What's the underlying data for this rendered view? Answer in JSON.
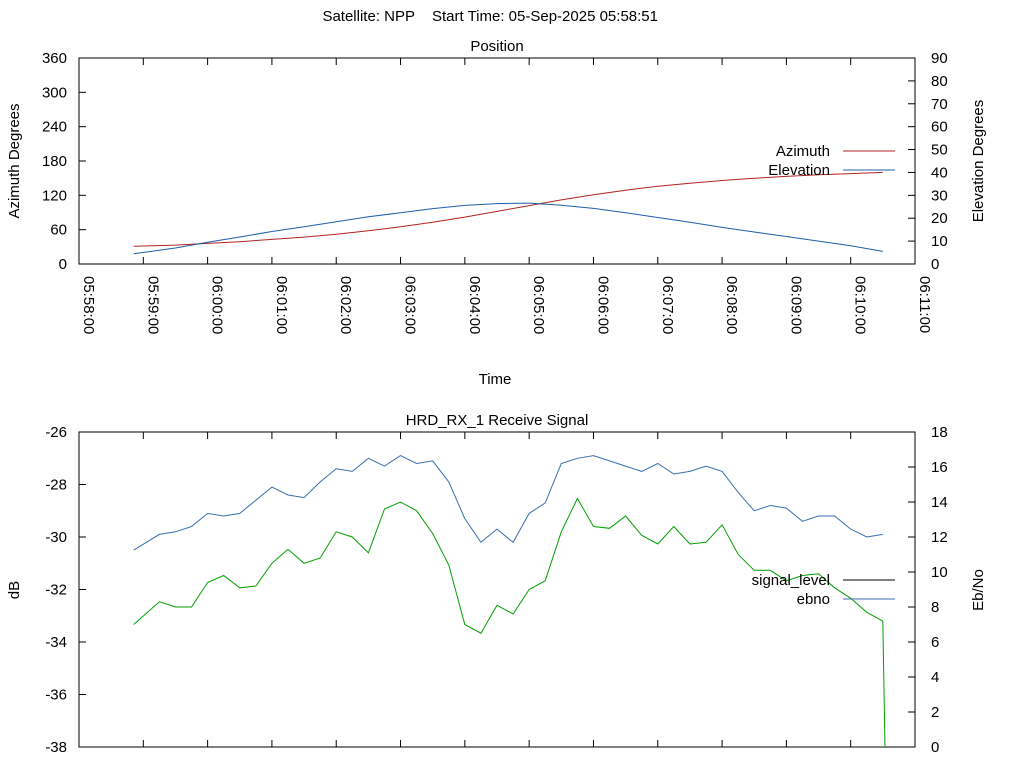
{
  "header": {
    "satellite_label": "Satellite: NPP",
    "start_time_label": "Start Time: 05-Sep-2025 05:58:51"
  },
  "colors": {
    "azimuth": "#b22222",
    "elevation": "#1f5fa8",
    "signal_level": "#3a6fb0",
    "ebno": "#00a000",
    "axes": "#000000"
  },
  "chart_data": [
    {
      "type": "line",
      "title": "Position",
      "xlabel": "Time",
      "ylabel": "Azimuth Degrees",
      "y2label": "Elevation Degrees",
      "xticks": [
        "05:58:00",
        "05:59:00",
        "06:00:00",
        "06:01:00",
        "06:02:00",
        "06:03:00",
        "06:04:00",
        "06:05:00",
        "06:06:00",
        "06:07:00",
        "06:08:00",
        "06:09:00",
        "06:10:00",
        "06:11:00"
      ],
      "xlim": [
        "05:58:00",
        "06:11:00"
      ],
      "ylim": [
        0,
        360
      ],
      "y2lim": [
        0,
        90
      ],
      "yticks": [
        0,
        60,
        120,
        180,
        240,
        300,
        360
      ],
      "y2ticks": [
        0,
        10,
        20,
        30,
        40,
        50,
        60,
        70,
        80,
        90
      ],
      "legend_position": "right",
      "series": [
        {
          "name": "Azimuth",
          "axis": "y",
          "x": [
            "05:58:51",
            "05:59:30",
            "06:00:00",
            "06:00:30",
            "06:01:00",
            "06:01:30",
            "06:02:00",
            "06:02:30",
            "06:03:00",
            "06:03:30",
            "06:04:00",
            "06:04:30",
            "06:05:00",
            "06:05:30",
            "06:06:00",
            "06:06:30",
            "06:07:00",
            "06:07:30",
            "06:08:00",
            "06:08:30",
            "06:09:00",
            "06:09:30",
            "06:10:00",
            "06:10:30"
          ],
          "values": [
            31,
            33,
            36,
            39,
            43,
            47,
            52,
            58,
            65,
            73,
            82,
            92,
            102,
            112,
            121,
            129,
            136,
            141,
            146,
            150,
            153,
            156,
            158,
            160
          ]
        },
        {
          "name": "Elevation",
          "axis": "y2",
          "x": [
            "05:58:51",
            "05:59:30",
            "06:00:00",
            "06:00:30",
            "06:01:00",
            "06:01:30",
            "06:02:00",
            "06:02:30",
            "06:03:00",
            "06:03:30",
            "06:04:00",
            "06:04:30",
            "06:05:00",
            "06:05:30",
            "06:06:00",
            "06:06:30",
            "06:07:00",
            "06:07:30",
            "06:08:00",
            "06:08:30",
            "06:09:00",
            "06:09:30",
            "06:10:00",
            "06:10:30"
          ],
          "values": [
            4.5,
            7,
            9.5,
            11.8,
            14.2,
            16.3,
            18.5,
            20.6,
            22.4,
            24.2,
            25.6,
            26.4,
            26.6,
            25.7,
            24.3,
            22.4,
            20.3,
            18.2,
            16,
            14,
            12,
            10,
            8,
            5.5
          ]
        }
      ]
    },
    {
      "type": "line",
      "title": "HRD_RX_1 Receive Signal",
      "xlabel": "",
      "ylabel": "dB",
      "y2label": "Eb/No",
      "xlim": [
        "05:58:00",
        "06:11:00"
      ],
      "ylim": [
        -38,
        -26
      ],
      "y2lim": [
        0,
        18
      ],
      "yticks": [
        -38,
        -36,
        -34,
        -32,
        -30,
        -28,
        -26
      ],
      "y2ticks": [
        0,
        2,
        4,
        6,
        8,
        10,
        12,
        14,
        16,
        18
      ],
      "legend_position": "right",
      "series": [
        {
          "name": "signal_level",
          "axis": "y",
          "x": [
            "05:58:51",
            "05:59:15",
            "05:59:30",
            "05:59:45",
            "06:00:00",
            "06:00:15",
            "06:00:30",
            "06:00:45",
            "06:01:00",
            "06:01:15",
            "06:01:30",
            "06:01:45",
            "06:02:00",
            "06:02:15",
            "06:02:30",
            "06:02:45",
            "06:03:00",
            "06:03:15",
            "06:03:30",
            "06:03:45",
            "06:04:00",
            "06:04:15",
            "06:04:30",
            "06:04:45",
            "06:05:00",
            "06:05:15",
            "06:05:30",
            "06:05:45",
            "06:06:00",
            "06:06:15",
            "06:06:30",
            "06:06:45",
            "06:07:00",
            "06:07:15",
            "06:07:30",
            "06:07:45",
            "06:08:00",
            "06:08:15",
            "06:08:30",
            "06:08:45",
            "06:09:00",
            "06:09:15",
            "06:09:30",
            "06:09:45",
            "06:10:00",
            "06:10:15",
            "06:10:30"
          ],
          "values": [
            -30.5,
            -29.9,
            -29.8,
            -29.6,
            -29.1,
            -29.2,
            -29.1,
            -28.6,
            -28.1,
            -28.4,
            -28.5,
            -27.9,
            -27.4,
            -27.5,
            -27.0,
            -27.3,
            -26.9,
            -27.2,
            -27.1,
            -27.9,
            -29.3,
            -30.2,
            -29.7,
            -30.2,
            -29.1,
            -28.7,
            -27.2,
            -27.0,
            -26.9,
            -27.1,
            -27.3,
            -27.5,
            -27.2,
            -27.6,
            -27.5,
            -27.3,
            -27.5,
            -28.3,
            -29.0,
            -28.8,
            -28.9,
            -29.4,
            -29.2,
            -29.2,
            -29.7,
            -30.0,
            -29.9
          ]
        },
        {
          "name": "ebno",
          "axis": "y2",
          "x": [
            "05:58:51",
            "05:59:15",
            "05:59:30",
            "05:59:45",
            "06:00:00",
            "06:00:15",
            "06:00:30",
            "06:00:45",
            "06:01:00",
            "06:01:15",
            "06:01:30",
            "06:01:45",
            "06:02:00",
            "06:02:15",
            "06:02:30",
            "06:02:45",
            "06:03:00",
            "06:03:15",
            "06:03:30",
            "06:03:45",
            "06:04:00",
            "06:04:15",
            "06:04:30",
            "06:04:45",
            "06:05:00",
            "06:05:15",
            "06:05:30",
            "06:05:45",
            "06:06:00",
            "06:06:15",
            "06:06:30",
            "06:06:45",
            "06:07:00",
            "06:07:15",
            "06:07:30",
            "06:07:45",
            "06:08:00",
            "06:08:15",
            "06:08:30",
            "06:08:45",
            "06:09:00",
            "06:09:15",
            "06:09:30",
            "06:09:45",
            "06:10:00",
            "06:10:15",
            "06:10:30",
            "06:10:32"
          ],
          "values": [
            7.0,
            8.3,
            8.0,
            8.0,
            9.4,
            9.8,
            9.1,
            9.2,
            10.5,
            11.3,
            10.5,
            10.8,
            12.3,
            12.0,
            11.1,
            13.6,
            14.0,
            13.5,
            12.2,
            10.4,
            7.0,
            6.5,
            8.1,
            7.6,
            9.0,
            9.5,
            12.3,
            14.2,
            12.6,
            12.5,
            13.2,
            12.1,
            11.6,
            12.6,
            11.6,
            11.7,
            12.7,
            11.0,
            10.1,
            10.1,
            9.5,
            9.8,
            9.9,
            9.1,
            8.5,
            7.7,
            7.2,
            0.0
          ]
        }
      ]
    }
  ]
}
